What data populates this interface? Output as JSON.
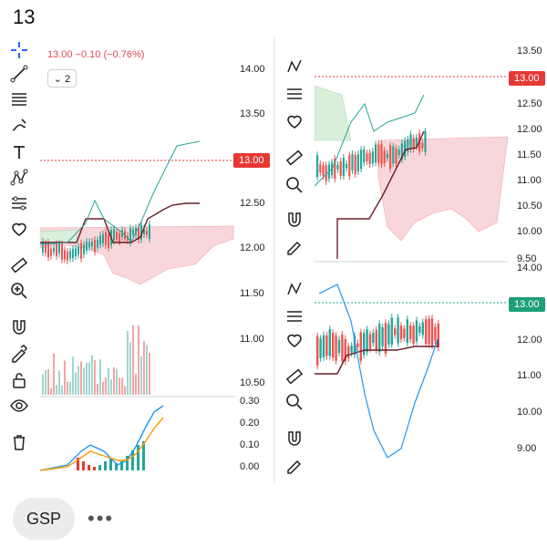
{
  "header": {
    "title": "13"
  },
  "legend": {
    "price_change": "13.00  −0.10 (−0.76%)",
    "collapse_label": "⌄ 2"
  },
  "left_chart": {
    "price_axis": [
      "14.00",
      "13.50",
      "13.00",
      "12.50",
      "12.00",
      "11.50",
      "11.00",
      "10.50"
    ],
    "last_price": "13.00",
    "osc_axis": [
      "0.30",
      "0.20",
      "0.10",
      "0.00"
    ]
  },
  "right_top_chart": {
    "price_axis": [
      "13.50",
      "12.50",
      "12.00",
      "11.50",
      "11.00",
      "10.50",
      "10.00",
      "9.50"
    ],
    "last_price": "13.00"
  },
  "right_bottom_chart": {
    "price_axis": [
      "14.00",
      "12.00",
      "11.00",
      "10.00",
      "9.00"
    ],
    "last_price": "13.00"
  },
  "toolbar": {
    "items": [
      "trendline",
      "fib-lines",
      "brush",
      "text",
      "pattern",
      "measure",
      "favorite",
      "ruler",
      "zoom-in",
      "magnet",
      "lock-draw",
      "unlock",
      "eye",
      "trash"
    ]
  },
  "footer": {
    "chip_label": "GSP",
    "more_label": "•••"
  },
  "colors": {
    "up": "#26a69a",
    "down": "#ef5350",
    "cloud_red": "#f8d7da",
    "cloud_green": "#d9efd9",
    "tag_red": "#e53935",
    "tag_green": "#1e9e7a"
  }
}
